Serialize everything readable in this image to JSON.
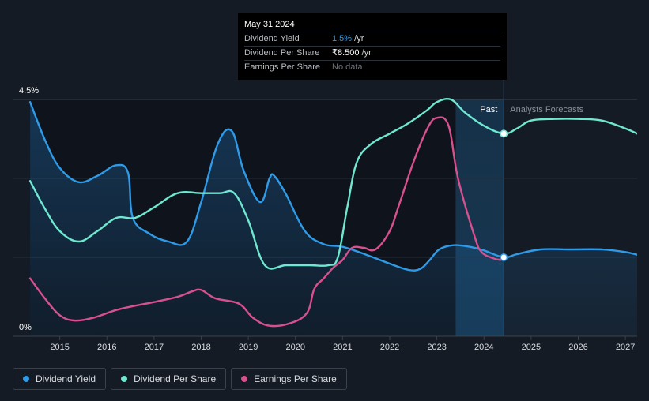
{
  "tooltip": {
    "date": "May 31 2024",
    "rows": [
      {
        "label": "Dividend Yield",
        "value": "1.5%",
        "unit": " /yr"
      },
      {
        "label": "Dividend Per Share",
        "value": "₹8.500",
        "unit": " /yr"
      },
      {
        "label": "Earnings Per Share",
        "value": "No data",
        "unit": ""
      }
    ]
  },
  "legend": [
    {
      "label": "Dividend Yield",
      "color": "#2e9be9"
    },
    {
      "label": "Dividend Per Share",
      "color": "#6ee8d0"
    },
    {
      "label": "Earnings Per Share",
      "color": "#d8508e"
    }
  ],
  "chart_data": {
    "type": "line",
    "title": "",
    "xlabel": "",
    "ylabel": "",
    "ylim": [
      0,
      4.5
    ],
    "xlim": [
      2014.0,
      2027.25
    ],
    "y_tick_labels": [
      "4.5%",
      "0%"
    ],
    "x_ticks": [
      2015,
      2016,
      2017,
      2018,
      2019,
      2020,
      2021,
      2022,
      2023,
      2024,
      2025,
      2026,
      2027
    ],
    "x_tick_labels": [
      "2015",
      "2016",
      "2017",
      "2018",
      "2019",
      "2020",
      "2021",
      "2022",
      "2023",
      "2024",
      "2025",
      "2026",
      "2027"
    ],
    "past_label": "Past",
    "forecast_label": "Analysts Forecasts",
    "past_end": 2024.42,
    "highlight_start": 2023.4,
    "series": [
      {
        "name": "Dividend Yield",
        "color": "#2e9be9",
        "filled": true,
        "x": [
          2014.37,
          2014.7,
          2015.0,
          2015.4,
          2015.8,
          2016.2,
          2016.45,
          2016.55,
          2016.9,
          2017.3,
          2017.7,
          2018.0,
          2018.35,
          2018.65,
          2018.9,
          2019.25,
          2019.45,
          2019.55,
          2019.8,
          2020.2,
          2020.6,
          2021.0,
          2021.5,
          2022.0,
          2022.4,
          2022.65,
          2022.85,
          2023.05,
          2023.35,
          2023.7,
          2024.0,
          2024.42,
          2024.7,
          2025.2,
          2025.8,
          2026.5,
          2027.0,
          2027.25
        ],
        "values": [
          4.45,
          3.7,
          3.2,
          2.93,
          3.05,
          3.25,
          3.1,
          2.25,
          1.95,
          1.8,
          1.8,
          2.55,
          3.65,
          3.9,
          3.15,
          2.55,
          3.0,
          3.05,
          2.7,
          2.0,
          1.75,
          1.7,
          1.55,
          1.38,
          1.26,
          1.28,
          1.45,
          1.65,
          1.73,
          1.7,
          1.63,
          1.5,
          1.56,
          1.65,
          1.65,
          1.65,
          1.6,
          1.55
        ]
      },
      {
        "name": "Dividend Per Share",
        "color": "#6ee8d0",
        "filled": false,
        "x": [
          2014.37,
          2014.7,
          2015.0,
          2015.4,
          2015.8,
          2016.2,
          2016.6,
          2017.0,
          2017.5,
          2018.0,
          2018.4,
          2018.7,
          2019.0,
          2019.35,
          2019.8,
          2020.3,
          2020.7,
          2020.9,
          2021.1,
          2021.3,
          2021.6,
          2022.0,
          2022.4,
          2022.8,
          2023.0,
          2023.3,
          2023.6,
          2024.0,
          2024.42,
          2024.7,
          2025.0,
          2025.5,
          2026.0,
          2026.5,
          2027.0,
          2027.25
        ],
        "values": [
          2.95,
          2.4,
          2.0,
          1.8,
          2.0,
          2.25,
          2.25,
          2.45,
          2.72,
          2.72,
          2.72,
          2.72,
          2.2,
          1.35,
          1.35,
          1.35,
          1.35,
          1.5,
          2.45,
          3.3,
          3.65,
          3.85,
          4.05,
          4.3,
          4.45,
          4.5,
          4.25,
          4.0,
          3.85,
          3.95,
          4.1,
          4.13,
          4.13,
          4.1,
          3.95,
          3.85
        ]
      },
      {
        "name": "Earnings Per Share",
        "color": "#d8508e",
        "filled": false,
        "x": [
          2014.37,
          2014.7,
          2015.0,
          2015.3,
          2015.7,
          2016.2,
          2016.6,
          2017.0,
          2017.5,
          2017.8,
          2018.0,
          2018.3,
          2018.8,
          2019.1,
          2019.45,
          2019.9,
          2020.25,
          2020.4,
          2020.6,
          2020.8,
          2021.0,
          2021.2,
          2021.45,
          2021.7,
          2022.0,
          2022.2,
          2022.5,
          2022.8,
          2023.0,
          2023.25,
          2023.45,
          2023.8,
          2023.95,
          2024.2,
          2024.35
        ],
        "values": [
          1.1,
          0.7,
          0.4,
          0.3,
          0.35,
          0.5,
          0.58,
          0.65,
          0.75,
          0.85,
          0.88,
          0.72,
          0.62,
          0.35,
          0.2,
          0.25,
          0.45,
          0.9,
          1.1,
          1.3,
          1.45,
          1.68,
          1.68,
          1.65,
          2.0,
          2.5,
          3.3,
          3.95,
          4.15,
          4.0,
          3.0,
          1.9,
          1.6,
          1.48,
          1.45
        ]
      }
    ],
    "markers": [
      {
        "series": "Dividend Yield",
        "x": 2024.42,
        "y": 1.5
      },
      {
        "series": "Dividend Per Share",
        "x": 2024.42,
        "y": 3.85
      }
    ]
  }
}
